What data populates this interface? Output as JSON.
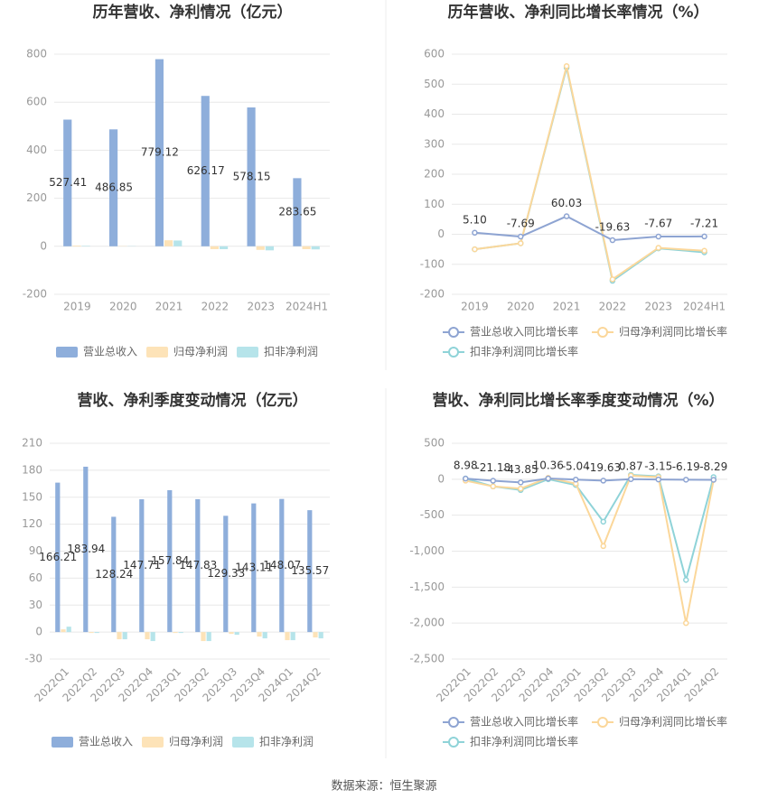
{
  "chart_data": [
    {
      "type": "bar",
      "title": "历年营收、净利情况（亿元）",
      "categories": [
        "2019",
        "2020",
        "2021",
        "2022",
        "2023",
        "2024H1"
      ],
      "series": [
        {
          "name": "营业总收入",
          "color": "#8eaedb",
          "values": [
            527.41,
            486.85,
            779.12,
            626.17,
            578.15,
            283.65
          ],
          "show_labels": true
        },
        {
          "name": "归母净利润",
          "color": "#fde3b8",
          "values": [
            3,
            1,
            25,
            -12,
            -15,
            -12
          ]
        },
        {
          "name": "扣非净利润",
          "color": "#b6e4ea",
          "values": [
            2,
            1,
            24,
            -12,
            -17,
            -13
          ]
        }
      ],
      "ylim": [
        -200,
        800
      ],
      "yticks": [
        -200,
        0,
        200,
        400,
        600,
        800
      ],
      "grid": true
    },
    {
      "type": "line",
      "title": "历年营收、净利同比增长率情况（%）",
      "categories": [
        "2019",
        "2020",
        "2021",
        "2022",
        "2023",
        "2024H1"
      ],
      "series": [
        {
          "name": "营业总收入同比增长率",
          "color": "#8ea4d2",
          "values": [
            5.1,
            -7.69,
            60.03,
            -19.63,
            -7.67,
            -7.21
          ],
          "value_labels": [
            "5.10",
            "-7.69",
            "60.03",
            "-19.63",
            "-7.67",
            "-7.21"
          ],
          "show_labels": true
        },
        {
          "name": "归母净利润同比增长率",
          "color": "#fbd79a",
          "values": [
            -50,
            -30,
            560,
            -150,
            -45,
            -55
          ]
        },
        {
          "name": "扣非净利润同比增长率",
          "color": "#8fd3d8",
          "values": [
            -50,
            -30,
            555,
            -155,
            -47,
            -60
          ]
        }
      ],
      "ylim": [
        -200,
        600
      ],
      "yticks": [
        -200,
        -100,
        0,
        100,
        200,
        300,
        400,
        500,
        600
      ],
      "grid": true
    },
    {
      "type": "bar",
      "title": "营收、净利季度变动情况（亿元）",
      "categories": [
        "2022Q1",
        "2022Q2",
        "2022Q3",
        "2022Q4",
        "2023Q1",
        "2023Q2",
        "2023Q3",
        "2023Q4",
        "2024Q1",
        "2024Q2"
      ],
      "series": [
        {
          "name": "营业总收入",
          "color": "#8eaedb",
          "values": [
            166.21,
            183.94,
            128.24,
            147.71,
            157.84,
            147.83,
            129.33,
            143.11,
            148.07,
            135.57
          ],
          "show_labels": true
        },
        {
          "name": "归母净利润",
          "color": "#fde3b8",
          "values": [
            3,
            -1,
            -8,
            -8,
            -1,
            -10,
            -2,
            -5,
            -9,
            -6
          ]
        },
        {
          "name": "扣非净利润",
          "color": "#b6e4ea",
          "values": [
            6,
            -1,
            -8,
            -10,
            -1,
            -10,
            -3,
            -7,
            -9,
            -7
          ]
        }
      ],
      "ylim": [
        -30,
        210
      ],
      "yticks": [
        -30,
        0,
        30,
        60,
        90,
        120,
        150,
        180,
        210
      ],
      "grid": true
    },
    {
      "type": "line",
      "title": "营收、净利同比增长率季度变动情况（%）",
      "categories": [
        "2022Q1",
        "2022Q2",
        "2022Q3",
        "2022Q4",
        "2023Q1",
        "2023Q2",
        "2023Q3",
        "2023Q4",
        "2024Q1",
        "2024Q2"
      ],
      "series": [
        {
          "name": "营业总收入同比增长率",
          "color": "#8ea4d2",
          "values": [
            8.98,
            -21.18,
            -43.85,
            10.36,
            -5.04,
            -19.63,
            0.87,
            -3.15,
            -6.19,
            -8.29
          ],
          "show_labels": true
        },
        {
          "name": "归母净利润同比增长率",
          "color": "#fbd79a",
          "values": [
            -20,
            -100,
            -130,
            20,
            -60,
            -930,
            50,
            30,
            -2000,
            -10
          ]
        },
        {
          "name": "扣非净利润同比增长率",
          "color": "#8fd3d8",
          "values": [
            10,
            -100,
            -150,
            0,
            -80,
            -590,
            60,
            40,
            -1400,
            30
          ]
        }
      ],
      "ylim": [
        -2500,
        500
      ],
      "yticks": [
        {
          "value": -2500,
          "label": "-2,500"
        },
        {
          "value": -2000,
          "label": "-2,000"
        },
        {
          "value": -1500,
          "label": "-1,500"
        },
        {
          "value": -1000,
          "label": "-1,000"
        },
        -500,
        0,
        500
      ],
      "grid": true
    }
  ],
  "source": "数据来源：恒生聚源"
}
